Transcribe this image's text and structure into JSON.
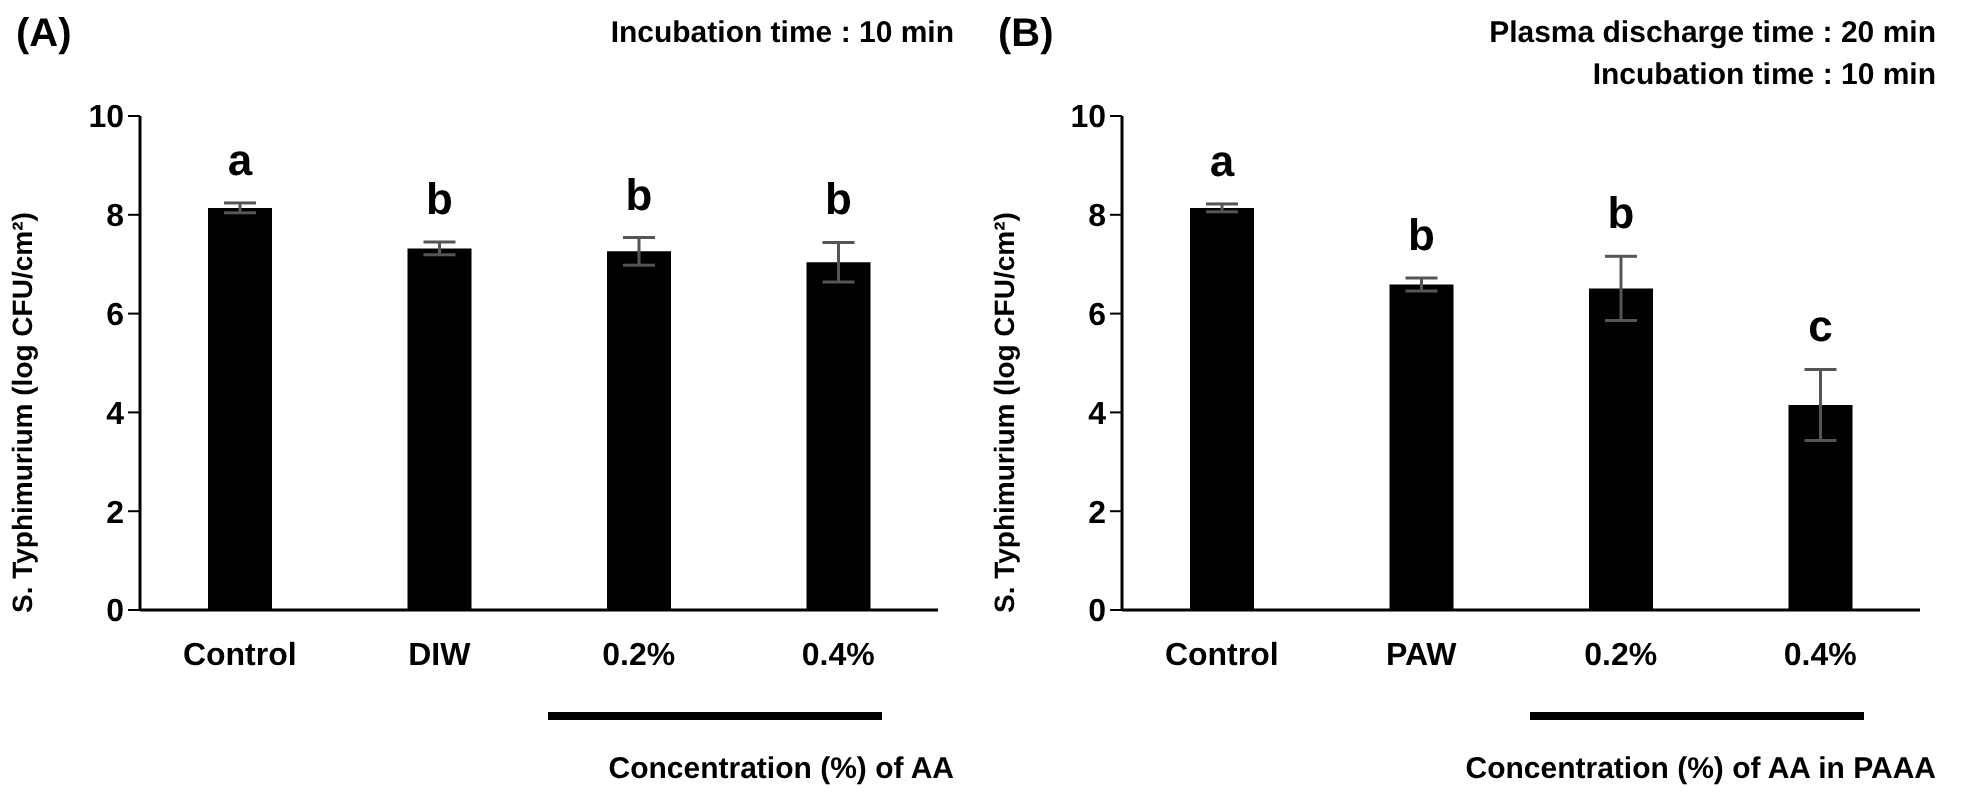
{
  "chart_data": [
    {
      "type": "bar",
      "title": "(A)",
      "subtitle": "Incubation time : 10 min",
      "ylabel": "S. Typhimurium (log CFU/cm²)",
      "xlabel": "Concentration (%) of AA",
      "categories": [
        "Control",
        "DIW",
        "0.2%",
        "0.4%"
      ],
      "values": [
        8.14,
        7.32,
        7.26,
        7.04
      ],
      "errors": [
        0.1,
        0.13,
        0.28,
        0.4
      ],
      "color": "#000000",
      "ylim": [
        0,
        10
      ],
      "yticks": [
        0,
        2,
        4,
        6,
        8,
        10
      ],
      "grid": false,
      "legend": false,
      "value_labels": [
        "a",
        "b",
        "b",
        "b"
      ]
    },
    {
      "type": "bar",
      "title": "(B)",
      "subtitle": "Plasma discharge time : 20 min\nIncubation time : 10 min",
      "ylabel": "S. Typhimurium (log CFU/cm²)",
      "xlabel": "Concentration (%) of AA in PAAA",
      "categories": [
        "Control",
        "PAW",
        "0.2%",
        "0.4%"
      ],
      "values": [
        8.14,
        6.59,
        6.51,
        4.15
      ],
      "errors": [
        0.08,
        0.13,
        0.65,
        0.72
      ],
      "color": "#000000",
      "ylim": [
        0,
        10
      ],
      "yticks": [
        0,
        2,
        4,
        6,
        8,
        10
      ],
      "grid": false,
      "legend": false,
      "value_labels": [
        "a",
        "b",
        "b",
        "c"
      ]
    }
  ]
}
